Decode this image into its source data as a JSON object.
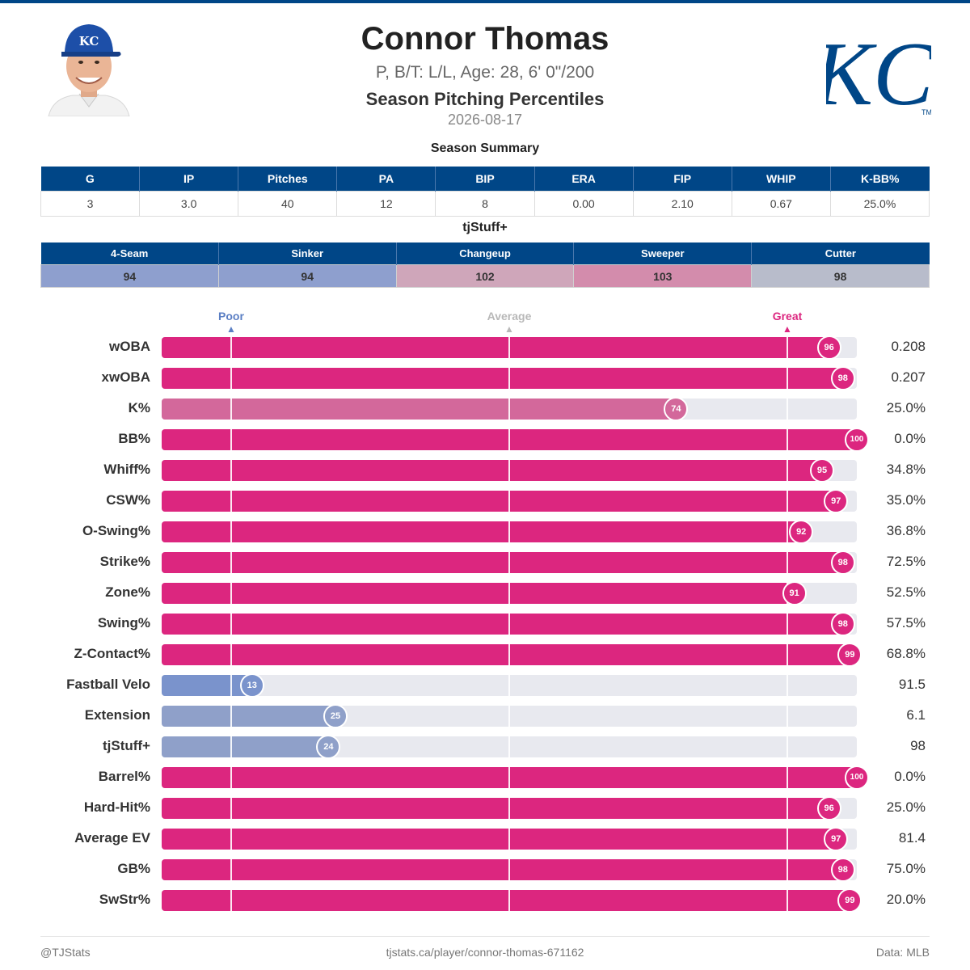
{
  "header": {
    "player_name": "Connor Thomas",
    "bio": "P, B/T: L/L, Age: 28, 6' 0\"/200",
    "subtitle": "Season Pitching Percentiles",
    "date": "2026-08-17",
    "cap_monogram": "KC",
    "logo_text": "KC",
    "logo_tm": "TM"
  },
  "colors": {
    "brand": "#004687",
    "great": "#dc267f",
    "poor": "#648fff",
    "average": "#b8b8b8"
  },
  "summary": {
    "title": "Season Summary",
    "headers": [
      "G",
      "IP",
      "Pitches",
      "PA",
      "BIP",
      "ERA",
      "FIP",
      "WHIP",
      "K-BB%"
    ],
    "values": [
      "3",
      "3.0",
      "40",
      "12",
      "8",
      "0.00",
      "2.10",
      "0.67",
      "25.0%"
    ]
  },
  "tjstuff": {
    "title": "tjStuff+",
    "pitches": [
      {
        "name": "4-Seam",
        "value": "94",
        "color": "#8e9fce"
      },
      {
        "name": "Sinker",
        "value": "94",
        "color": "#8e9fce"
      },
      {
        "name": "Changeup",
        "value": "102",
        "color": "#cfa6ba"
      },
      {
        "name": "Sweeper",
        "value": "103",
        "color": "#d38cac"
      },
      {
        "name": "Cutter",
        "value": "98",
        "color": "#b8bccb"
      }
    ]
  },
  "markers": {
    "poor": "Poor",
    "average": "Average",
    "great": "Great"
  },
  "chart_data": {
    "type": "bar",
    "orientation": "horizontal",
    "xlim": [
      0,
      100
    ],
    "reference_lines": [
      10,
      50,
      90
    ],
    "categories": [
      "wOBA",
      "xwOBA",
      "K%",
      "BB%",
      "Whiff%",
      "CSW%",
      "O-Swing%",
      "Strike%",
      "Zone%",
      "Swing%",
      "Z-Contact%",
      "Fastball Velo",
      "Extension",
      "tjStuff+",
      "Barrel%",
      "Hard-Hit%",
      "Average EV",
      "GB%",
      "SwStr%"
    ],
    "percentiles": [
      96,
      98,
      74,
      100,
      95,
      97,
      92,
      98,
      91,
      98,
      99,
      13,
      25,
      24,
      100,
      96,
      97,
      98,
      99
    ],
    "stat_values": [
      "0.208",
      "0.207",
      "25.0%",
      "0.0%",
      "34.8%",
      "35.0%",
      "36.8%",
      "72.5%",
      "52.5%",
      "57.5%",
      "68.8%",
      "91.5",
      "6.1",
      "98",
      "0.0%",
      "25.0%",
      "81.4",
      "75.0%",
      "20.0%"
    ],
    "bar_colors": [
      "#dc267f",
      "#dc267f",
      "#d3689b",
      "#dc267f",
      "#dc267f",
      "#dc267f",
      "#dc267f",
      "#dc267f",
      "#dc267f",
      "#dc267f",
      "#dc267f",
      "#7a93cc",
      "#8fa0c9",
      "#8fa0c9",
      "#dc267f",
      "#dc267f",
      "#dc267f",
      "#dc267f",
      "#dc267f"
    ]
  },
  "footer": {
    "left": "@TJStats",
    "center": "tjstats.ca/player/connor-thomas-671162",
    "right": "Data: MLB"
  }
}
